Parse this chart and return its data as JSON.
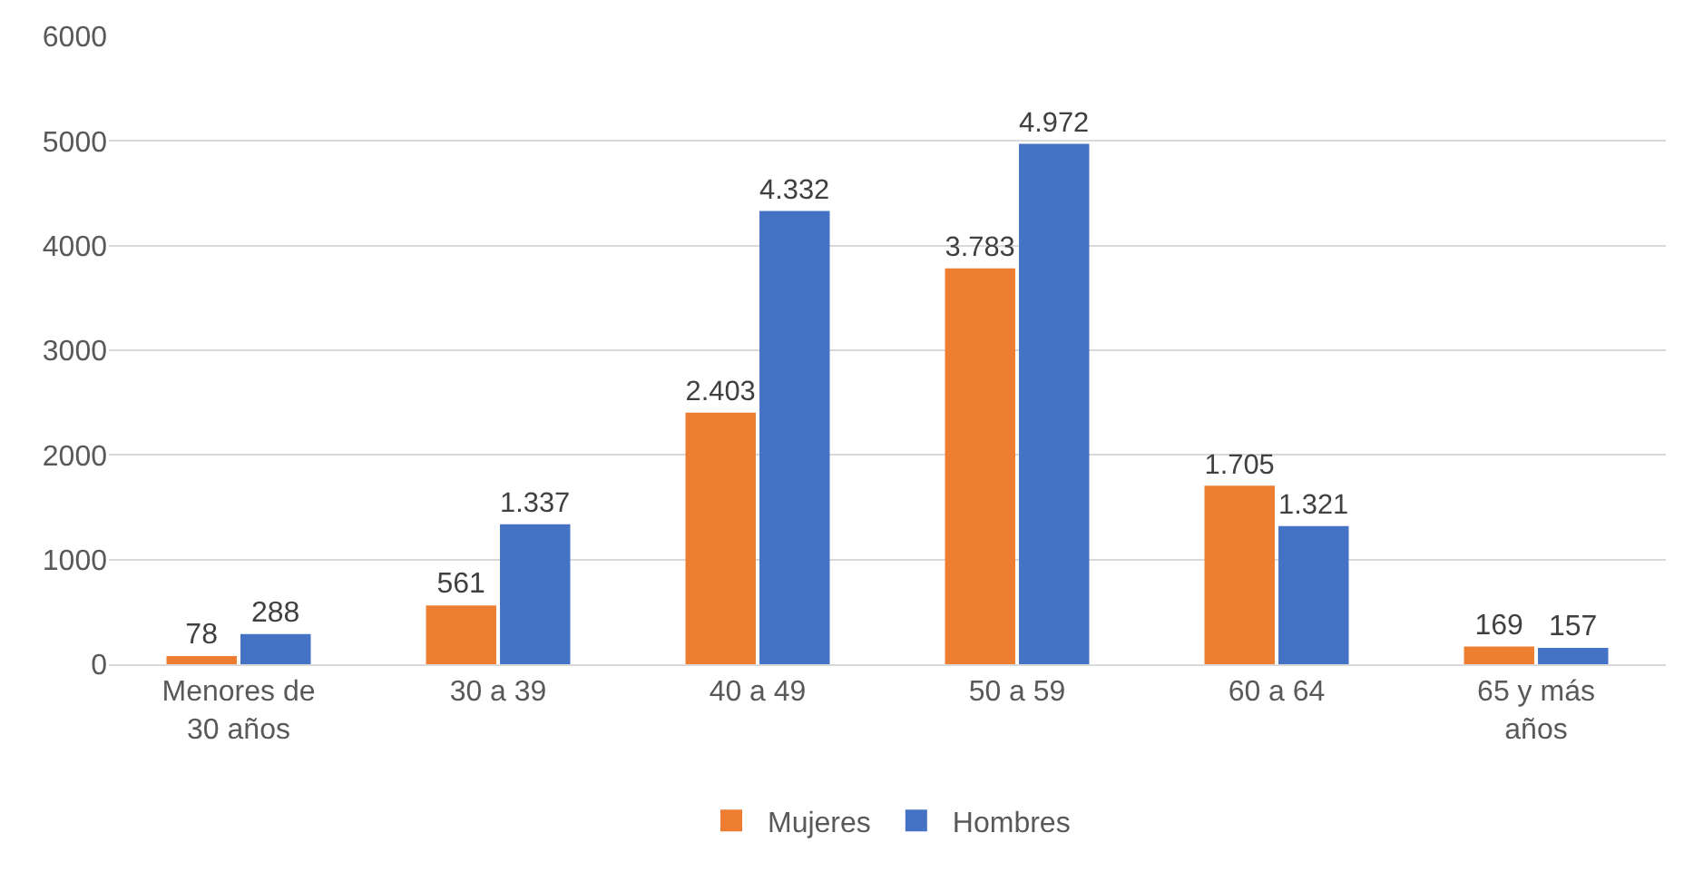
{
  "chart_data": {
    "type": "bar",
    "categories": [
      "Menores de 30 años",
      "30 a 39",
      "40 a 49",
      "50 a 59",
      "60 a 64",
      "65 y más años"
    ],
    "series": [
      {
        "name": "Mujeres",
        "color": "#ed7d31",
        "values": [
          78,
          561,
          2403,
          3783,
          1705,
          169
        ],
        "value_labels": [
          "78",
          "561",
          "2.403",
          "3.783",
          "1.705",
          "169"
        ]
      },
      {
        "name": "Hombres",
        "color": "#4472c4",
        "values": [
          288,
          1337,
          4332,
          4972,
          1321,
          157
        ],
        "value_labels": [
          "288",
          "1.337",
          "4.332",
          "4.972",
          "1.321",
          "157"
        ]
      }
    ],
    "ylim": [
      0,
      6000
    ],
    "yticks": [
      0,
      1000,
      2000,
      3000,
      4000,
      5000,
      6000
    ],
    "grid": "y",
    "legend": "bottom"
  }
}
